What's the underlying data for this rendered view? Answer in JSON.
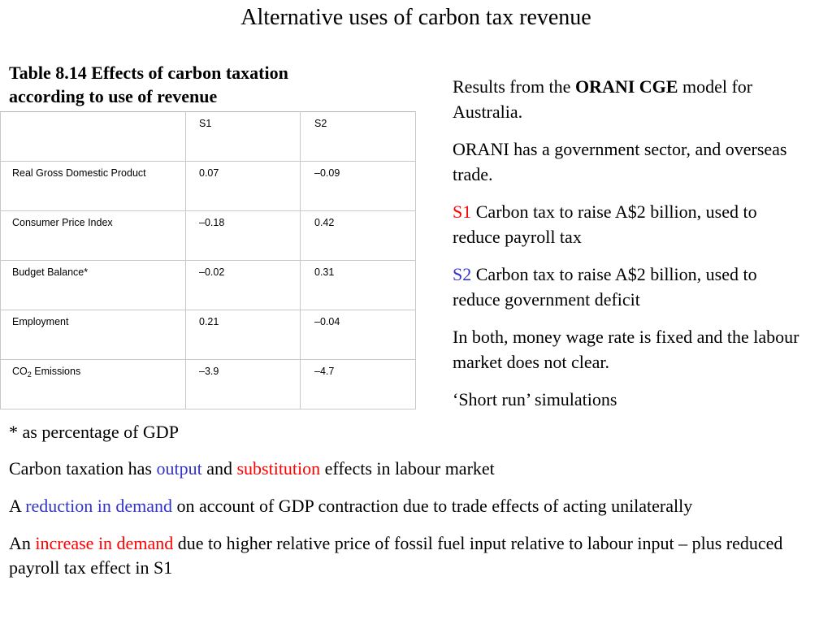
{
  "slide": {
    "title": "Alternative uses of carbon tax revenue"
  },
  "table": {
    "caption_line1": "Table 8.14 Effects of carbon taxation",
    "caption_line2": "according to use of revenue",
    "header": [
      "",
      "S1",
      "S2"
    ],
    "rows": [
      {
        "label": "Real Gross Domestic Product",
        "s1": "0.07",
        "s2": "–0.09"
      },
      {
        "label": "Consumer Price Index",
        "s1": "–0.18",
        "s2": "0.42"
      },
      {
        "label": "Budget Balance*",
        "s1": "–0.02",
        "s2": "0.31"
      },
      {
        "label": "Employment",
        "s1": "0.21",
        "s2": "–0.04"
      },
      {
        "label_prefix": "CO",
        "label_sub": "2",
        "label_suffix": " Emissions",
        "s1": "–3.9",
        "s2": "–4.7"
      }
    ]
  },
  "right_panel": {
    "p1_pre": "Results from the ",
    "p1_bold": "ORANI CGE",
    "p1_post": " model for Australia.",
    "p2": "ORANI has a government sector, and overseas trade.",
    "p3_key": "S1",
    "p3_text": " Carbon tax to raise A$2 billion, used to reduce payroll tax",
    "p4_key": "S2",
    "p4_text": " Carbon tax to raise A$2 billion, used to reduce government deficit",
    "p5": "In both, money wage rate is fixed and the labour market does not clear.",
    "p6": "‘Short run’ simulations"
  },
  "bottom": {
    "footnote": "* as percentage of GDP",
    "l2_pre": "Carbon taxation has ",
    "l2_output": "output",
    "l2_mid": " and ",
    "l2_substitution": "substitution",
    "l2_post": " effects in labour market",
    "l3_pre": "A ",
    "l3_highlight": "reduction in demand",
    "l3_post": " on account of GDP contraction due to trade effects of acting unilaterally",
    "l4_pre": "An ",
    "l4_highlight": "increase in demand",
    "l4_post": " due to higher relative price of fossil fuel input relative to labour input – plus reduced payroll tax effect in S1"
  },
  "colors": {
    "red": "#ff0000",
    "blue": "#3333cc"
  }
}
